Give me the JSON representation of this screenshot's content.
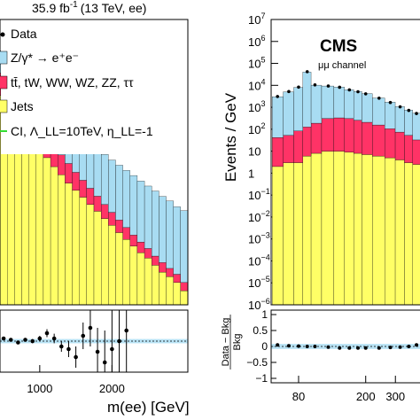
{
  "chart_data": [
    {
      "panel": "left",
      "type": "bar",
      "channel": "ee",
      "lumi_label": "35.9 fb",
      "lumi_sup": "-1",
      "energy_label": "(13 TeV, ee)",
      "xlabel": "m(ee) [GeV]",
      "x_ticks": [
        "1000",
        "2000"
      ],
      "legend": [
        {
          "key": "data",
          "label": "Data",
          "color": "#000000"
        },
        {
          "key": "dy",
          "label": "Z/γ* → e⁺e⁻",
          "color": "#a8dcf2"
        },
        {
          "key": "ttbar",
          "label": "tt̄, tW, WW, WZ, ZZ, ττ",
          "color": "#ff3366"
        },
        {
          "key": "jets",
          "label": "Jets",
          "color": "#ffff66"
        },
        {
          "key": "ci",
          "label": "CI, Λ_LL=10TeV, η_LL=-1",
          "color": "#33dd33"
        }
      ],
      "x": [
        500,
        600,
        700,
        800,
        900,
        1000,
        1100,
        1200,
        1300,
        1400,
        1500,
        1600,
        1700,
        1800,
        1900,
        2000,
        2100,
        2200,
        2300,
        2400,
        2500,
        2600,
        2700,
        2800,
        2900,
        3000
      ],
      "series": [
        {
          "name": "Jets",
          "values": [
            30,
            18,
            10,
            6,
            3.5,
            2.2,
            1.4,
            0.9,
            0.6,
            0.4,
            0.28,
            0.2,
            0.14,
            0.1,
            0.07,
            0.05,
            0.035,
            0.025,
            0.018,
            0.013,
            0.01,
            0.007,
            0.005,
            0.004,
            0.003,
            0.002
          ]
        },
        {
          "name": "tt̄, tW, WW, WZ, ZZ, ττ",
          "values": [
            60,
            34,
            20,
            12,
            7,
            4.2,
            2.6,
            1.6,
            1.0,
            0.65,
            0.4,
            0.26,
            0.17,
            0.11,
            0.07,
            0.045,
            0.03,
            0.02,
            0.013,
            0.009,
            0.006,
            0.004,
            0.003,
            0.002,
            0.0015,
            0.001
          ]
        },
        {
          "name": "Z/γ* → e⁺e⁻",
          "values": [
            180,
            110,
            70,
            45,
            30,
            21,
            15,
            11,
            8,
            6,
            4.5,
            3.4,
            2.6,
            2.0,
            1.5,
            1.15,
            0.9,
            0.7,
            0.55,
            0.42,
            0.33,
            0.26,
            0.2,
            0.16,
            0.12,
            0.1
          ]
        }
      ],
      "data_points": [
        {
          "x": 500,
          "y": 270
        },
        {
          "x": 600,
          "y": 160
        },
        {
          "x": 700,
          "y": 105
        },
        {
          "x": 800,
          "y": 62
        },
        {
          "x": 900,
          "y": 41
        },
        {
          "x": 1000,
          "y": 27
        },
        {
          "x": 1100,
          "y": 20
        },
        {
          "x": 1200,
          "y": 14
        },
        {
          "x": 1300,
          "y": 9.5
        },
        {
          "x": 1400,
          "y": 7
        },
        {
          "x": 1500,
          "y": 5.2
        },
        {
          "x": 1600,
          "y": 4
        },
        {
          "x": 1700,
          "y": 3
        },
        {
          "x": 1800,
          "y": 2.6
        },
        {
          "x": 1900,
          "y": 2.6
        },
        {
          "x": 2000,
          "y": 2.6
        },
        {
          "x": 2100,
          "y": 2.6
        },
        {
          "x": 2200,
          "y": 3.2
        },
        {
          "x": 2300,
          "y": 2.2
        }
      ],
      "ci_curve": {
        "x": [
          500,
          800,
          1100,
          1400,
          1700,
          2000,
          2300,
          2600,
          2900,
          3000
        ],
        "y": [
          300,
          160,
          95,
          62,
          45,
          33,
          25,
          19,
          15,
          14
        ]
      },
      "ratio": {
        "x": [
          500,
          600,
          700,
          800,
          900,
          1000,
          1100,
          1200,
          1300,
          1400,
          1500,
          1600,
          1700,
          1800,
          1900,
          2000,
          2100,
          2200
        ],
        "y": [
          0.1,
          0.05,
          -0.05,
          0.05,
          0.0,
          0.1,
          0.3,
          0.1,
          -0.2,
          -0.3,
          -0.6,
          0.2,
          0.5,
          -0.4,
          -0.8,
          -0.3,
          0.0,
          0.4
        ],
        "err": [
          0.05,
          0.05,
          0.06,
          0.07,
          0.08,
          0.1,
          0.15,
          0.18,
          0.2,
          0.3,
          0.4,
          0.5,
          0.7,
          0.9,
          1.2,
          1.5,
          1.8,
          2.0
        ]
      }
    },
    {
      "panel": "right",
      "type": "bar",
      "channel": "μμ",
      "experiment": "CMS",
      "channel_label": "μμ channel",
      "ylabel": "Events / GeV",
      "ratio_ylabel_num": "Data − Bkg",
      "ratio_ylabel_den": "Bkg",
      "x_ticks": [
        "80",
        "200",
        "300"
      ],
      "ylim": [
        1e-06,
        10000000.0
      ],
      "y_ticks": [
        {
          "label": "10",
          "exp": "7",
          "v": 7
        },
        {
          "label": "10",
          "exp": "6",
          "v": 6
        },
        {
          "label": "10",
          "exp": "5",
          "v": 5
        },
        {
          "label": "10",
          "exp": "4",
          "v": 4
        },
        {
          "label": "10",
          "exp": "3",
          "v": 3
        },
        {
          "label": "10",
          "exp": "2",
          "v": 2
        },
        {
          "label": "10",
          "exp": "",
          "v": 1
        },
        {
          "label": "1",
          "exp": "",
          "v": 0
        },
        {
          "label": "10",
          "exp": "−1",
          "v": -1
        },
        {
          "label": "10",
          "exp": "−2",
          "v": -2
        },
        {
          "label": "10",
          "exp": "−3",
          "v": -3
        },
        {
          "label": "10",
          "exp": "−4",
          "v": -4
        },
        {
          "label": "10",
          "exp": "−5",
          "v": -5
        },
        {
          "label": "10",
          "exp": "−6",
          "v": -6
        }
      ],
      "ratio_ticks": [
        "1",
        "0.5",
        "0",
        "−0.5",
        "−1"
      ],
      "x": [
        60,
        70,
        80,
        90,
        100,
        120,
        140,
        160,
        180,
        200,
        240,
        280,
        320,
        360,
        400
      ],
      "series": [
        {
          "name": "Jets",
          "values": [
            2,
            3,
            3,
            6,
            8,
            10,
            10,
            9,
            8,
            7,
            6,
            5,
            4,
            3,
            2.5
          ]
        },
        {
          "name": "tt̄, tW, WW, WZ, ZZ, ττ",
          "values": [
            40,
            50,
            80,
            120,
            180,
            300,
            320,
            300,
            250,
            200,
            150,
            100,
            70,
            50,
            30
          ]
        },
        {
          "name": "Z/γ* → e⁺e⁻",
          "values": [
            3000,
            5000,
            8000,
            40000,
            10000,
            9000,
            8000,
            6000,
            5000,
            4000,
            2500,
            1600,
            1000,
            700,
            500
          ]
        }
      ],
      "data_points": [
        {
          "x": 60,
          "y": 3100
        },
        {
          "x": 70,
          "y": 5200
        },
        {
          "x": 80,
          "y": 8300
        },
        {
          "x": 90,
          "y": 42000
        },
        {
          "x": 100,
          "y": 10500
        },
        {
          "x": 120,
          "y": 9300
        },
        {
          "x": 140,
          "y": 8200
        },
        {
          "x": 160,
          "y": 6200
        },
        {
          "x": 180,
          "y": 5100
        },
        {
          "x": 200,
          "y": 4100
        },
        {
          "x": 240,
          "y": 2600
        },
        {
          "x": 280,
          "y": 1650
        },
        {
          "x": 320,
          "y": 1050
        },
        {
          "x": 360,
          "y": 720
        },
        {
          "x": 400,
          "y": 520
        }
      ],
      "ratio": {
        "x": [
          60,
          70,
          80,
          90,
          100,
          120,
          140,
          160,
          180,
          200,
          240,
          280,
          320,
          360,
          400
        ],
        "y": [
          0.05,
          0.02,
          0.01,
          0.0,
          0.0,
          -0.02,
          -0.05,
          -0.05,
          -0.05,
          -0.05,
          -0.05,
          -0.03,
          -0.02,
          0.0,
          0.05
        ],
        "err": [
          0.02,
          0.02,
          0.02,
          0.01,
          0.02,
          0.02,
          0.02,
          0.02,
          0.02,
          0.02,
          0.03,
          0.03,
          0.04,
          0.05,
          0.06
        ]
      }
    }
  ]
}
